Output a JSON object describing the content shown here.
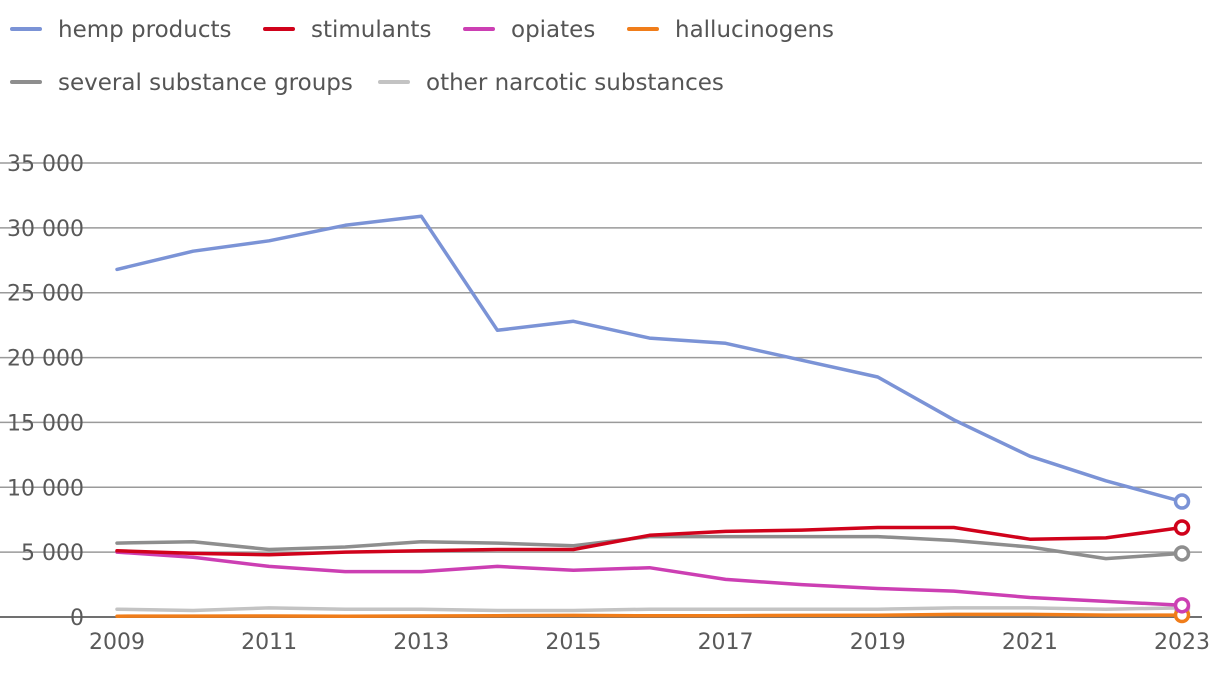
{
  "chart_data": {
    "type": "line",
    "title": "",
    "xlabel": "",
    "ylabel": "",
    "x": [
      2009,
      2010,
      2011,
      2012,
      2013,
      2014,
      2015,
      2016,
      2017,
      2018,
      2019,
      2020,
      2021,
      2022,
      2023
    ],
    "x_ticks": [
      "2009",
      "2011",
      "2013",
      "2015",
      "2017",
      "2019",
      "2021",
      "2023"
    ],
    "y_ticks": [
      "0",
      "5 000",
      "10 000",
      "15 000",
      "20 000",
      "25 000",
      "30 000",
      "35 000"
    ],
    "ylim": [
      0,
      35000
    ],
    "grid": true,
    "legend_position": "top-left",
    "end_markers": true,
    "series": [
      {
        "name": "hemp products",
        "color": "#7b93d6",
        "values": [
          26800,
          28200,
          29000,
          30200,
          30900,
          22100,
          22800,
          21500,
          21100,
          19800,
          18500,
          15200,
          12400,
          10500,
          8900
        ]
      },
      {
        "name": "stimulants",
        "color": "#d0021b",
        "values": [
          5100,
          4900,
          4800,
          5000,
          5100,
          5200,
          5200,
          6300,
          6600,
          6700,
          6900,
          6900,
          6000,
          6100,
          6900
        ]
      },
      {
        "name": "opiates",
        "color": "#cc3fb3",
        "values": [
          5000,
          4600,
          3900,
          3500,
          3500,
          3900,
          3600,
          3800,
          2900,
          2500,
          2200,
          2000,
          1500,
          1200,
          900
        ]
      },
      {
        "name": "hallucinogens",
        "color": "#f07d1a",
        "values": [
          60,
          70,
          80,
          60,
          80,
          100,
          120,
          90,
          100,
          120,
          140,
          200,
          200,
          150,
          150
        ]
      },
      {
        "name": "several substance groups",
        "color": "#8e8e8e",
        "values": [
          5700,
          5800,
          5200,
          5400,
          5800,
          5700,
          5500,
          6200,
          6200,
          6200,
          6200,
          5900,
          5400,
          4500,
          4900
        ]
      },
      {
        "name": "other narcotic substances",
        "color": "#c3c3c3",
        "values": [
          600,
          500,
          700,
          600,
          600,
          500,
          500,
          600,
          600,
          600,
          600,
          700,
          700,
          600,
          700
        ]
      }
    ]
  }
}
